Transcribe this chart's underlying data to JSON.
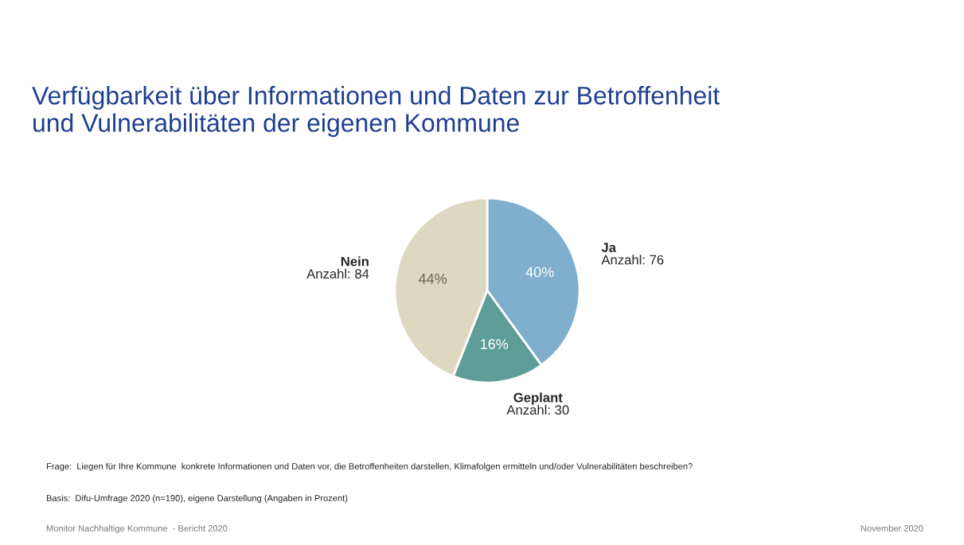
{
  "chart_data": {
    "type": "pie",
    "title": "Verfügbarkeit über Informationen und Daten zur Betroffenheit\nund Vulnerabilitäten der eigenen Kommune",
    "categories": [
      "Ja",
      "Geplant",
      "Nein"
    ],
    "values": [
      40,
      16,
      44
    ],
    "colors": [
      "#7fafcc",
      "#5f9e98",
      "#ddd8c0"
    ],
    "value_labels": [
      "40%",
      "16%",
      "44%"
    ],
    "legend": false,
    "annotations": [
      {
        "text": "Anzahl: 76",
        "x": "Ja"
      },
      {
        "text": "Anzahl: 30",
        "x": "Geplant"
      },
      {
        "text": "Anzahl: 84",
        "x": "Nein"
      },
      "Frage:  Liegen für Ihre Kommune  konkrete Informationen und Daten vor, die Betroffenheiten darstellen, Klimafolgen ermitteln und/oder Vulnerabilitäten beschreiben?",
      "Basis:  Difu-Umfrage 2020 (n=190), eigene Darstellung (Angaben in Prozent)",
      "Monitor Nachhaltige Kommune  - Bericht 2020",
      "November 2020"
    ]
  }
}
